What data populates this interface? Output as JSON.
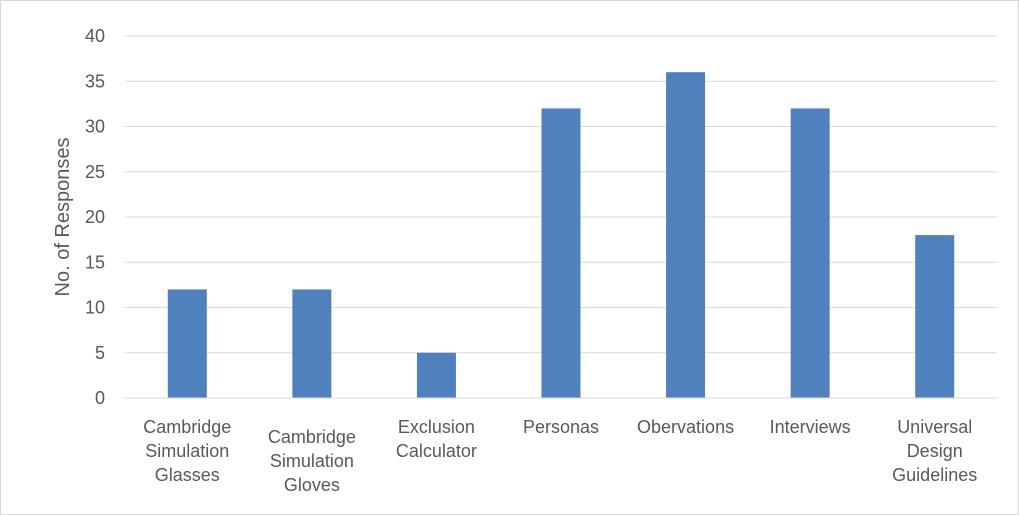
{
  "chart_data": {
    "type": "bar",
    "title": "",
    "xlabel": "",
    "ylabel": "No. of Responses",
    "ylim": [
      0,
      40
    ],
    "yticks": [
      0,
      5,
      10,
      15,
      20,
      25,
      30,
      35,
      40
    ],
    "grid": true,
    "legend": "none",
    "bar_color": "#4f81bd",
    "categories": [
      [
        "Cambridge",
        "Simulation",
        "Glasses"
      ],
      [
        "Cambridge",
        "Simulation",
        "Gloves"
      ],
      [
        "Exclusion",
        "Calculator"
      ],
      [
        "Personas"
      ],
      [
        "Obervations"
      ],
      [
        "Interviews"
      ],
      [
        "Universal",
        "Design",
        "Guidelines"
      ]
    ],
    "values": [
      12,
      12,
      5,
      32,
      36,
      32,
      18
    ]
  }
}
